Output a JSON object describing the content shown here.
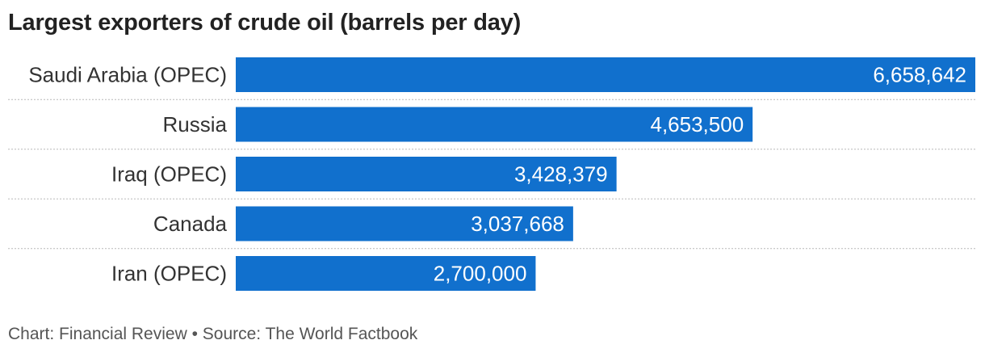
{
  "chart_data": {
    "type": "bar",
    "orientation": "horizontal",
    "title": "Largest exporters of crude oil (barrels per day)",
    "categories": [
      "Saudi Arabia (OPEC)",
      "Russia",
      "Iraq (OPEC)",
      "Canada",
      "Iran (OPEC)"
    ],
    "values": [
      6658642,
      4653500,
      3428379,
      3037668,
      2700000
    ],
    "value_labels": [
      "6,658,642",
      "4,653,500",
      "3,428,379",
      "3,037,668",
      "2,700,000"
    ],
    "xlim": [
      0,
      6658642
    ],
    "bar_color": "#1170cd",
    "label_color": "#ffffff",
    "separator_color": "#b8b8b8",
    "grid": false,
    "legend": "none"
  },
  "footer": {
    "text": "Chart: Financial Review • Source: The World Factbook"
  }
}
